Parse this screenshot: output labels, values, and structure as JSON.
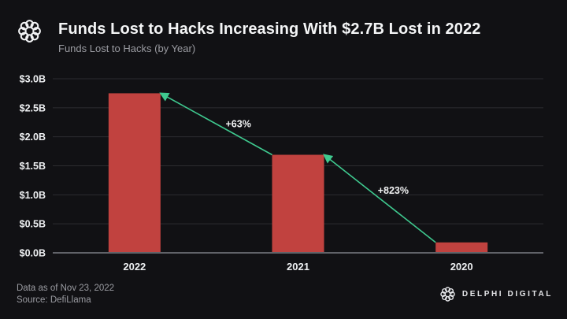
{
  "header": {
    "title": "Funds Lost to Hacks Increasing With $2.7B Lost in 2022",
    "subtitle": "Funds Lost to Hacks (by Year)",
    "logo_icon": "delphi-wreath-icon"
  },
  "chart_data": {
    "type": "bar",
    "title": "Funds Lost to Hacks (by Year)",
    "unit": "USD billions",
    "categories": [
      "2022",
      "2021",
      "2020"
    ],
    "values": [
      2.75,
      1.69,
      0.18
    ],
    "ylim": [
      0,
      3.0
    ],
    "grid": "horizontal",
    "legend": "none",
    "yticks": [
      {
        "value": 3.0,
        "label": "$3.0B"
      },
      {
        "value": 2.5,
        "label": "$2.5B"
      },
      {
        "value": 2.0,
        "label": "$2.0B"
      },
      {
        "value": 1.5,
        "label": "$1.5B"
      },
      {
        "value": 1.0,
        "label": "$1.0B"
      },
      {
        "value": 0.5,
        "label": "$0.5B"
      },
      {
        "value": 0.0,
        "label": "$0.0B"
      }
    ],
    "annotations": [
      {
        "label": "+63%",
        "from_category": "2021",
        "to_category": "2022"
      },
      {
        "label": "+823%",
        "from_category": "2020",
        "to_category": "2021"
      }
    ]
  },
  "footer": {
    "data_as_of": "Data as of Nov 23, 2022",
    "source": "Source: DefiLlama",
    "brand": "DELPHI DIGITAL",
    "brand_icon": "delphi-wreath-icon"
  },
  "colors": {
    "background": "#111114",
    "title_text": "#f4f5f6",
    "muted_text": "#9b9ca2",
    "tick_text": "#eef0f2",
    "bar": "#c1423f",
    "arrow": "#3fc98f",
    "grid": "#2c2c30",
    "axis_line": "#606268"
  }
}
